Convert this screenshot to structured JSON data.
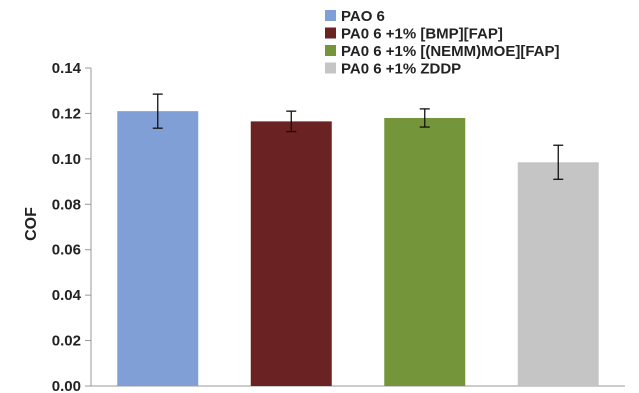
{
  "chart_data": {
    "type": "bar",
    "title": "",
    "xlabel": "",
    "ylabel": "COF",
    "ylim": [
      0,
      0.14
    ],
    "yticks": [
      "0.00",
      "0.02",
      "0.04",
      "0.06",
      "0.08",
      "0.10",
      "0.12",
      "0.14"
    ],
    "categories": [
      "PAO 6",
      "PA0 6 +1% [BMP][FAP]",
      "PA0 6 +1% [(NEMM)MOE][FAP]",
      "PA0 6 +1% ZDDP"
    ],
    "values": [
      0.121,
      0.1165,
      0.118,
      0.0985
    ],
    "error": [
      0.0075,
      0.0045,
      0.004,
      0.0075
    ],
    "colors": [
      "#7f9fd6",
      "#6b2222",
      "#74953a",
      "#c5c5c5"
    ],
    "grid": false,
    "legend_position": "top"
  }
}
